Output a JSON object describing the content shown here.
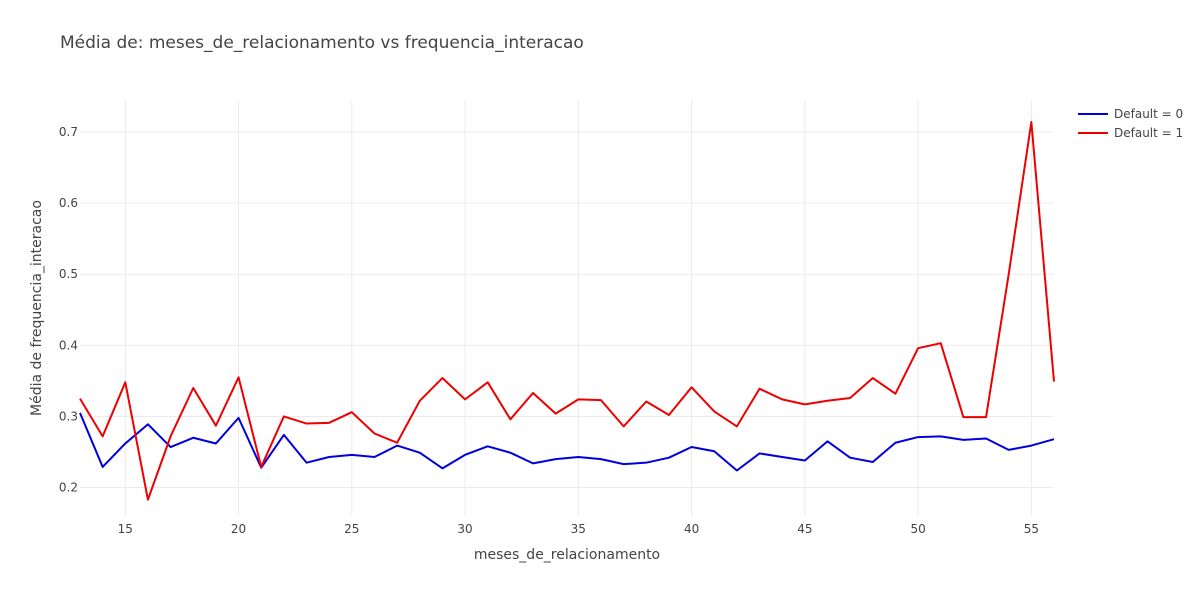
{
  "chart_data": {
    "type": "line",
    "title": "Média de: meses_de_relacionamento vs frequencia_interacao",
    "xlabel": "meses_de_relacionamento",
    "ylabel": "Média de frequencia_interacao",
    "xlim": [
      13,
      56
    ],
    "ylim": [
      0.16,
      0.745
    ],
    "xticks": [
      15,
      20,
      25,
      30,
      35,
      40,
      45,
      50,
      55
    ],
    "yticks": [
      0.2,
      0.3,
      0.4,
      0.5,
      0.6,
      0.7
    ],
    "ytick_labels": [
      "0.2",
      "0.3",
      "0.4",
      "0.5",
      "0.6",
      "0.7"
    ],
    "grid": true,
    "legend_position": "top-right",
    "x": [
      13,
      14,
      15,
      16,
      17,
      18,
      19,
      20,
      21,
      22,
      23,
      24,
      25,
      26,
      27,
      28,
      29,
      30,
      31,
      32,
      33,
      34,
      35,
      36,
      37,
      38,
      39,
      40,
      41,
      42,
      43,
      44,
      45,
      46,
      47,
      48,
      49,
      50,
      51,
      52,
      53,
      54,
      55,
      56
    ],
    "series": [
      {
        "name": "Default = 0",
        "color": "#0000dd",
        "values": [
          0.305,
          0.229,
          0.262,
          0.289,
          0.257,
          0.27,
          0.262,
          0.298,
          0.228,
          0.274,
          0.235,
          0.243,
          0.246,
          0.243,
          0.259,
          0.249,
          0.227,
          0.246,
          0.258,
          0.249,
          0.234,
          0.24,
          0.243,
          0.24,
          0.233,
          0.235,
          0.242,
          0.257,
          0.251,
          0.224,
          0.248,
          0.243,
          0.238,
          0.265,
          0.242,
          0.236,
          0.263,
          0.271,
          0.272,
          0.267,
          0.269,
          0.253,
          0.259,
          0.268
        ]
      },
      {
        "name": "Default = 1",
        "color": "#ee0000",
        "values": [
          0.325,
          0.272,
          0.348,
          0.183,
          0.272,
          0.34,
          0.287,
          0.355,
          0.229,
          0.3,
          0.29,
          0.291,
          0.306,
          0.276,
          0.263,
          0.322,
          0.354,
          0.324,
          0.348,
          0.296,
          0.333,
          0.304,
          0.324,
          0.323,
          0.286,
          0.321,
          0.302,
          0.341,
          0.307,
          0.286,
          0.339,
          0.324,
          0.317,
          0.322,
          0.326,
          0.354,
          0.332,
          0.396,
          0.403,
          0.299,
          0.299,
          0.5,
          0.714,
          0.349
        ]
      }
    ]
  }
}
